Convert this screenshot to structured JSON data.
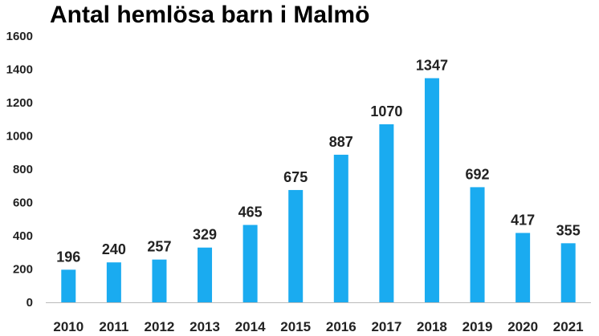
{
  "chart_data": {
    "type": "bar",
    "title": "Antal hemlösa barn i Malmö",
    "xlabel": "",
    "ylabel": "",
    "categories": [
      "2010",
      "2011",
      "2012",
      "2013",
      "2014",
      "2015",
      "2016",
      "2017",
      "2018",
      "2019",
      "2020",
      "2021"
    ],
    "values": [
      196,
      240,
      257,
      329,
      465,
      675,
      887,
      1070,
      1347,
      692,
      417,
      355
    ],
    "ylim": [
      0,
      1600
    ],
    "yticks": [
      0,
      200,
      400,
      600,
      800,
      1000,
      1200,
      1400,
      1600
    ],
    "grid": false,
    "legend": "none",
    "bar_color": "#1AABF0",
    "axis_color": "#BBBBBB"
  }
}
